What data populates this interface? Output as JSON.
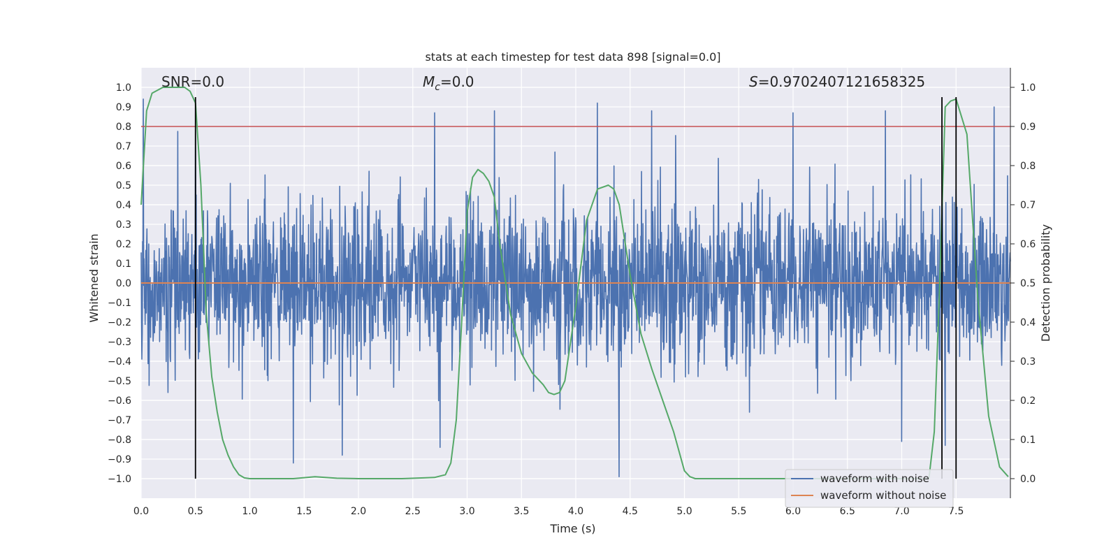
{
  "chart_data": {
    "type": "line",
    "title": "stats at each timestep for test data 898 [signal=0.0]",
    "xlabel": "Time (s)",
    "ylabel": "Whitened strain",
    "ylabel_right": "Detection probability",
    "xlim": [
      0.0,
      8.0
    ],
    "ylim": [
      -1.1,
      1.1
    ],
    "ylim_right": [
      -0.05,
      1.05
    ],
    "x_ticks": [
      0.0,
      0.5,
      1.0,
      1.5,
      2.0,
      2.5,
      3.0,
      3.5,
      4.0,
      4.5,
      5.0,
      5.5,
      6.0,
      6.5,
      7.0,
      7.5
    ],
    "x_tick_labels": [
      "0.0",
      "0.5",
      "1.0",
      "1.5",
      "2.0",
      "2.5",
      "3.0",
      "3.5",
      "4.0",
      "4.5",
      "5.0",
      "5.5",
      "6.0",
      "6.5",
      "7.0",
      "7.5"
    ],
    "y_ticks": [
      1.0,
      0.9,
      0.8,
      0.7,
      0.6,
      0.5,
      0.4,
      0.3,
      0.2,
      0.1,
      0.0,
      -0.1,
      -0.2,
      -0.3,
      -0.4,
      -0.5,
      -0.6,
      -0.7,
      -0.8,
      -0.9,
      -1.0
    ],
    "y_tick_labels": [
      "1.0",
      "0.9",
      "0.8",
      "0.7",
      "0.6",
      "0.5",
      "0.4",
      "0.3",
      "0.2",
      "0.1",
      "0.0",
      "−0.1",
      "−0.2",
      "−0.3",
      "−0.4",
      "−0.5",
      "−0.6",
      "−0.7",
      "−0.8",
      "−0.9",
      "−1.0"
    ],
    "y_right_ticks": [
      1.0,
      0.9,
      0.8,
      0.7,
      0.6,
      0.5,
      0.4,
      0.3,
      0.2,
      0.1,
      0.0
    ],
    "y_right_tick_labels": [
      "1.0",
      "0.9",
      "0.8",
      "0.7",
      "0.6",
      "0.5",
      "0.4",
      "0.3",
      "0.2",
      "0.1",
      "0.0"
    ],
    "annotations": {
      "snr": "SNR=0.0",
      "mc_symbol": "M",
      "mc_sub": "c",
      "mc_value": "=0.0",
      "s_symbol": "S",
      "s_value": "=0.9702407121658325"
    },
    "threshold_right": 0.9,
    "vertical_lines_x": [
      0.5,
      7.37,
      7.5
    ],
    "vertical_lines_yrange": [
      -1.0,
      0.95
    ],
    "noisy_waveform": {
      "name": "waveform with noise",
      "color": "#4c72b0",
      "typical_amplitude": 0.36,
      "peaks": [
        {
          "x": 0.02,
          "y": 0.94
        },
        {
          "x": 0.5,
          "y": 0.78
        },
        {
          "x": 1.4,
          "y": -0.92
        },
        {
          "x": 1.85,
          "y": -0.88
        },
        {
          "x": 2.7,
          "y": 0.87
        },
        {
          "x": 2.75,
          "y": -0.84
        },
        {
          "x": 3.25,
          "y": 0.88
        },
        {
          "x": 4.2,
          "y": 0.92
        },
        {
          "x": 4.4,
          "y": -0.99
        },
        {
          "x": 4.7,
          "y": 0.88
        },
        {
          "x": 6.0,
          "y": 0.87
        },
        {
          "x": 6.85,
          "y": 0.88
        },
        {
          "x": 7.0,
          "y": -0.81
        },
        {
          "x": 7.4,
          "y": -0.83
        },
        {
          "x": 7.85,
          "y": 0.9
        }
      ]
    },
    "clean_waveform": {
      "name": "waveform without noise",
      "color": "#dd8452",
      "x": [
        0.0,
        8.0
      ],
      "y": [
        0.0,
        0.0
      ]
    },
    "detection_probability": {
      "color": "#55a868",
      "x": [
        0.0,
        0.05,
        0.1,
        0.2,
        0.3,
        0.4,
        0.45,
        0.5,
        0.55,
        0.6,
        0.65,
        0.7,
        0.75,
        0.8,
        0.85,
        0.9,
        0.95,
        1.0,
        1.2,
        1.4,
        1.6,
        1.8,
        2.0,
        2.2,
        2.4,
        2.6,
        2.7,
        2.8,
        2.85,
        2.9,
        2.95,
        3.0,
        3.05,
        3.1,
        3.15,
        3.2,
        3.25,
        3.3,
        3.4,
        3.5,
        3.6,
        3.7,
        3.75,
        3.8,
        3.85,
        3.9,
        4.0,
        4.1,
        4.2,
        4.3,
        4.35,
        4.4,
        4.5,
        4.6,
        4.7,
        4.8,
        4.9,
        5.0,
        5.05,
        5.1,
        5.5,
        6.0,
        6.5,
        7.0,
        7.25,
        7.3,
        7.35,
        7.4,
        7.45,
        7.5,
        7.6,
        7.7,
        7.8,
        7.9,
        7.98
      ],
      "y": [
        0.7,
        0.94,
        0.985,
        1.0,
        1.0,
        1.0,
        0.99,
        0.96,
        0.75,
        0.42,
        0.26,
        0.17,
        0.1,
        0.06,
        0.03,
        0.01,
        0.002,
        0.0,
        0.0,
        0.0,
        0.005,
        0.001,
        0.0,
        0.0,
        0.0,
        0.002,
        0.003,
        0.01,
        0.04,
        0.15,
        0.4,
        0.68,
        0.77,
        0.79,
        0.78,
        0.76,
        0.72,
        0.6,
        0.42,
        0.32,
        0.27,
        0.24,
        0.22,
        0.215,
        0.22,
        0.25,
        0.44,
        0.66,
        0.74,
        0.75,
        0.74,
        0.7,
        0.52,
        0.37,
        0.28,
        0.2,
        0.12,
        0.02,
        0.005,
        0.0,
        0.0,
        0.0,
        0.0,
        0.0,
        0.0,
        0.12,
        0.5,
        0.95,
        0.965,
        0.97,
        0.88,
        0.46,
        0.16,
        0.03,
        0.005
      ]
    },
    "threshold_line": {
      "color": "#c44e52"
    },
    "legend": {
      "placement": "lower-right",
      "entries": [
        {
          "label": "waveform with noise",
          "color": "#4c72b0"
        },
        {
          "label": "waveform without noise",
          "color": "#dd8452"
        }
      ]
    },
    "grid": true,
    "background": "#eaeaf2"
  }
}
